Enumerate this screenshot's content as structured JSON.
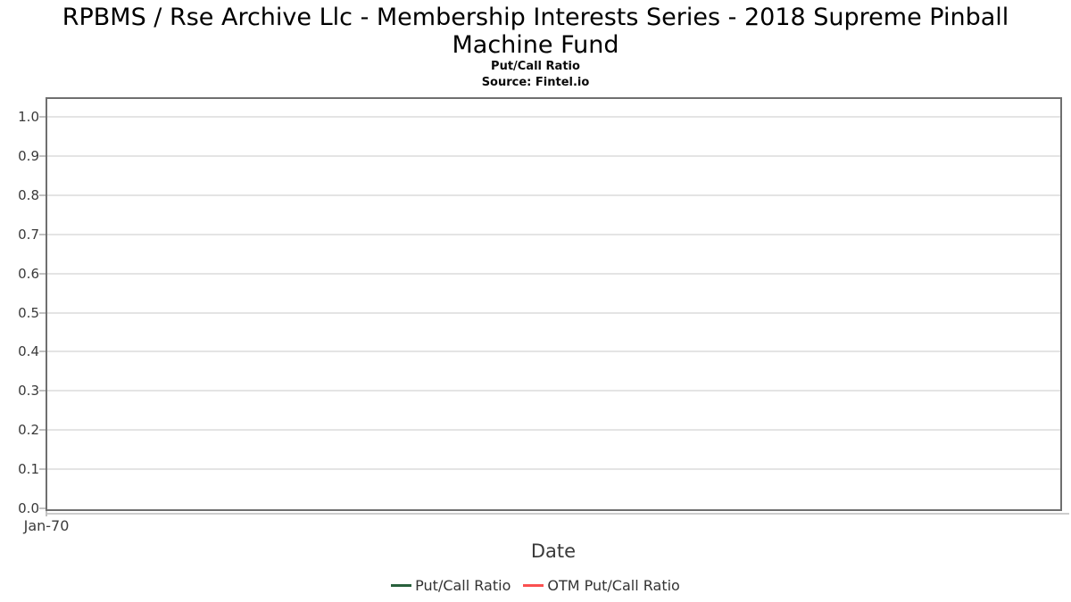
{
  "page": {
    "background": "#ffffff"
  },
  "chart_data": {
    "type": "line",
    "title": "RPBMS / Rse Archive Llc - Membership Interests Series - 2018 Supreme Pinball Machine Fund",
    "subtitle": "Put/Call Ratio",
    "source": "Source: Fintel.io",
    "xlabel": "Date",
    "ylabel": "",
    "ylim": [
      0.0,
      1.05
    ],
    "y_ticks": [
      "1.0",
      "0.9",
      "0.8",
      "0.7",
      "0.6",
      "0.5",
      "0.4",
      "0.3",
      "0.2",
      "0.1",
      "0.0"
    ],
    "x_ticks": [
      "Jan-70"
    ],
    "grid": "horizontal-only",
    "legend_position": "bottom-center",
    "series": [
      {
        "name": "Put/Call Ratio",
        "color": "#28603c",
        "x": [],
        "values": []
      },
      {
        "name": "OTM Put/Call Ratio",
        "color": "#fa5050",
        "x": [],
        "values": []
      }
    ],
    "style": {
      "grid_color": "#e4e4e4",
      "spine_color": "#6f6f6f",
      "tick_color": "#c2c2c2",
      "sub_axis_line_color": "#cdcdcd",
      "tick_label_color": "#3a3a3a"
    }
  }
}
